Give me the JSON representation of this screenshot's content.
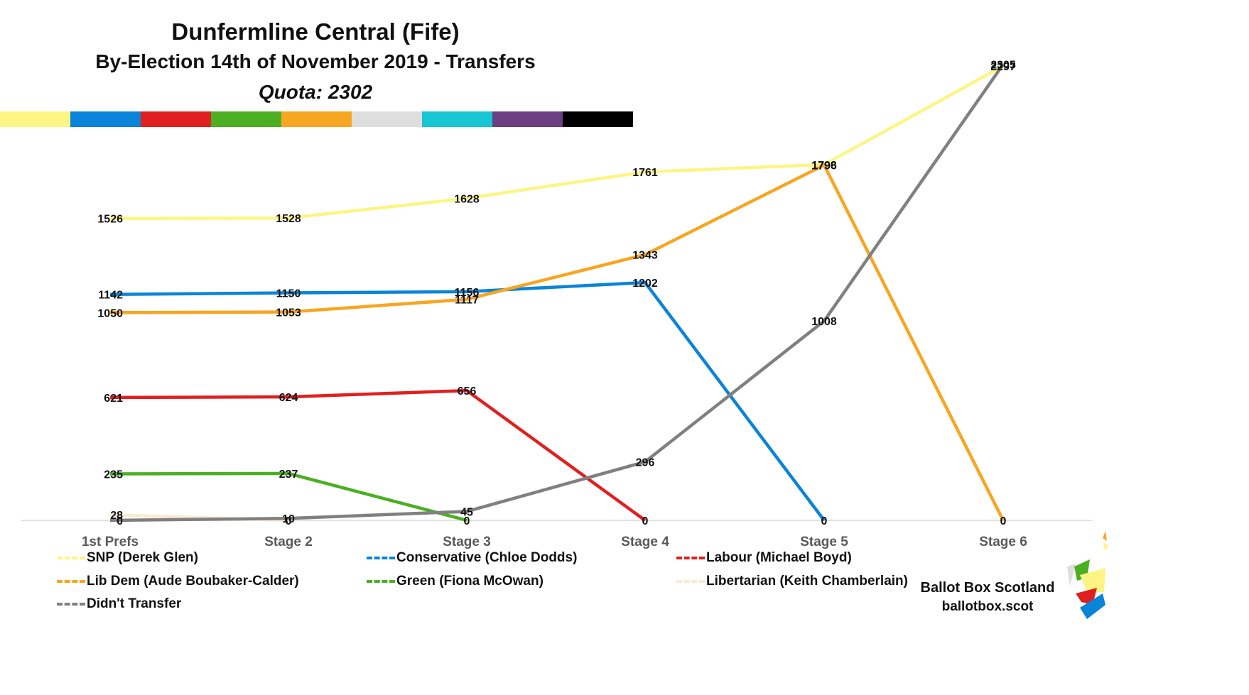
{
  "title": {
    "line1": "Dunfermline Central (Fife)",
    "line2": "By-Election 14th of November 2019 - Transfers",
    "line3": "Quota: 2302"
  },
  "color_strip": [
    "#fdf583",
    "#0a84d8",
    "#e0201f",
    "#4caf22",
    "#f7a622",
    "#dedede",
    "#17c5d3",
    "#6b3f82",
    "#000000"
  ],
  "chart_data": {
    "type": "line",
    "categories": [
      "1st Prefs",
      "Stage 2",
      "Stage 3",
      "Stage 4",
      "Stage 5",
      "Stage 6"
    ],
    "ylim": [
      0,
      2400
    ],
    "grid": false,
    "legend_position": "bottom",
    "series": [
      {
        "name": "SNP (Derek Glen)",
        "color": "#fdf583",
        "values": [
          1526,
          1528,
          1628,
          1761,
          1798,
          2297
        ],
        "labels": [
          "1526",
          "1528",
          "1628",
          "1761",
          "1798",
          "2297"
        ]
      },
      {
        "name": "Conservative (Chloe Dodds)",
        "color": "#0a84d8",
        "values": [
          1142,
          1150,
          1156,
          1202,
          0,
          null
        ],
        "labels": [
          "1142",
          "1150",
          "1156",
          "1202",
          "0",
          ""
        ]
      },
      {
        "name": "Labour (Michael Boyd)",
        "color": "#e0201f",
        "values": [
          621,
          624,
          656,
          0,
          null,
          null
        ],
        "labels": [
          "621",
          "624",
          "656",
          "0",
          "",
          ""
        ]
      },
      {
        "name": "Lib Dem (Aude Boubaker-Calder)",
        "color": "#f7a622",
        "values": [
          1050,
          1053,
          1117,
          1343,
          1796,
          0
        ],
        "labels": [
          "1050",
          "1053",
          "1117",
          "1343",
          "1796",
          "0"
        ]
      },
      {
        "name": "Green (Fiona McOwan)",
        "color": "#4caf22",
        "values": [
          235,
          237,
          0,
          null,
          null,
          null
        ],
        "labels": [
          "235",
          "237",
          "0",
          "",
          "",
          ""
        ]
      },
      {
        "name": "Libertarian (Keith Chamberlain)",
        "color": "#fbead2",
        "values": [
          28,
          0,
          null,
          null,
          null,
          null
        ],
        "labels": [
          "28",
          "0",
          "",
          "",
          "",
          ""
        ]
      },
      {
        "name": "Didn't Transfer",
        "color": "#808080",
        "values": [
          0,
          10,
          45,
          296,
          1008,
          2305
        ],
        "labels": [
          "0",
          "10",
          "45",
          "296",
          "1008",
          "2305"
        ]
      }
    ]
  },
  "brand": {
    "name": "Ballot Box Scotland",
    "url": "ballotbox.scot"
  }
}
